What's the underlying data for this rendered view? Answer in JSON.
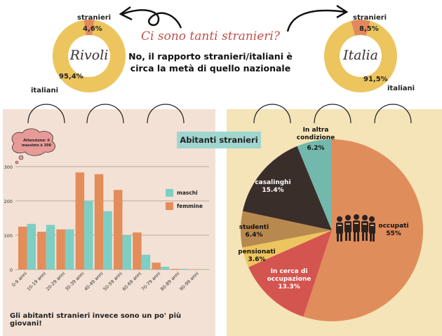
{
  "headline": "Ci sono tanti stranieri?",
  "subline": "No, il rapporto stranieri/italiani è circa la metà di quello nazionale",
  "rivoli": {
    "name": "Rivoli",
    "stranieri_label": "stranieri",
    "italiani_label": "italiani",
    "stranieri_pct": "4,6%",
    "italiani_pct": "95,4%",
    "stranieri_value": 4.6,
    "italiani_value": 95.4
  },
  "italia": {
    "name": "Italia",
    "stranieri_label": "stranieri",
    "italiani_label": "italiani",
    "stranieri_pct": "8,5%",
    "italiani_pct": "91,5%",
    "stranieri_value": 8.5,
    "italiani_value": 91.5
  },
  "histogram": {
    "warning": "Attenzione: il massimo è 300",
    "footer": "Gli abitanti stranieri invece sono un po' più giovani!"
  },
  "banner": "Abitanti stranieri",
  "colors": {
    "donut_yellow": "#ecc55e",
    "donut_orange": "#e2895c",
    "maschi": "#7dcfc4",
    "femmine": "#e38d5b",
    "occupati": "#e08d5c",
    "in_cerca": "#d4554f",
    "pensionati": "#ecc55e",
    "studenti": "#b8894f",
    "casalinghi": "#3a2e2b",
    "altra": "#72b8ad",
    "headline": "#c0504d"
  },
  "chart_data": [
    {
      "type": "pie",
      "title": "Rivoli",
      "labels": [
        "stranieri",
        "italiani"
      ],
      "values": [
        4.6,
        95.4
      ],
      "value_labels": [
        "4,6%",
        "95,4%"
      ]
    },
    {
      "type": "pie",
      "title": "Italia",
      "labels": [
        "stranieri",
        "italiani"
      ],
      "values": [
        8.5,
        91.5
      ],
      "value_labels": [
        "8,5%",
        "91,5%"
      ]
    },
    {
      "type": "bar",
      "categories": [
        "0-9 anni",
        "10-19 anni",
        "20-29 anni",
        "30-39 anni",
        "40-49 anni",
        "50-59 anni",
        "60-69 anni",
        "70-79 anni",
        "80-89 anni",
        "90-99 anni"
      ],
      "series": [
        {
          "name": "maschi",
          "values": [
            133,
            130,
            117,
            200,
            170,
            100,
            43,
            8,
            2,
            0
          ]
        },
        {
          "name": "femmine",
          "values": [
            125,
            110,
            117,
            283,
            278,
            232,
            108,
            20,
            2,
            1
          ]
        }
      ],
      "yticks": [
        0,
        100,
        200,
        300
      ],
      "ylim": [
        0,
        300
      ],
      "grid": true,
      "legend_position": "right"
    },
    {
      "type": "pie",
      "title": "Abitanti stranieri",
      "labels": [
        "occupati",
        "In cerca di occupazione",
        "pensionati",
        "studenti",
        "casalinghi",
        "In altra condizione"
      ],
      "values": [
        55,
        13.3,
        3.6,
        6.4,
        15.4,
        6.2
      ],
      "value_labels": [
        "55%",
        "13.3%",
        "3.6%",
        "6.4%",
        "15.4%",
        "6.2%"
      ]
    }
  ]
}
